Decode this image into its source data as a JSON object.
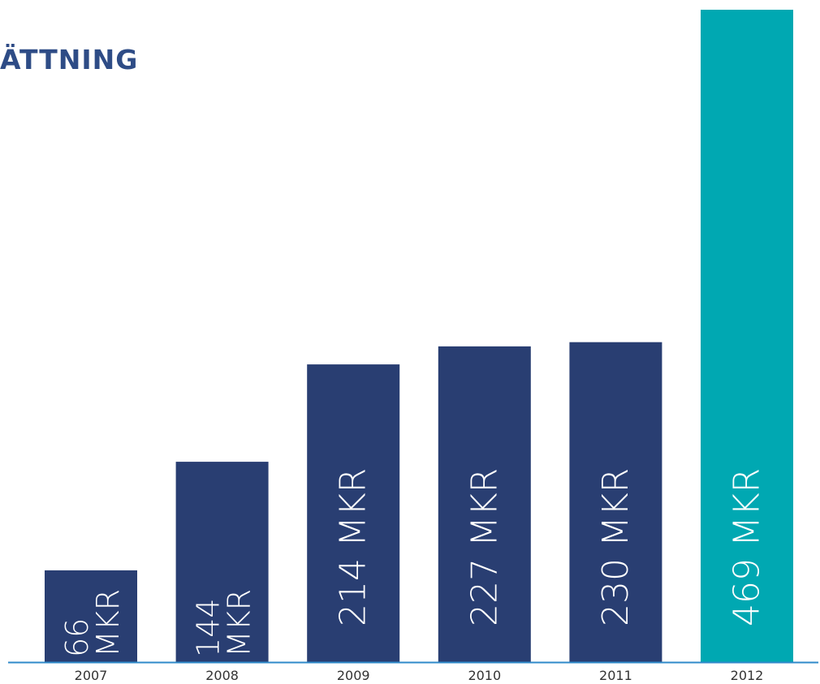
{
  "chart_data": {
    "type": "bar",
    "title": "ÄTTNING",
    "categories": [
      "2007",
      "2008",
      "2009",
      "2010",
      "2011",
      "2012"
    ],
    "values": [
      66,
      144,
      214,
      227,
      230,
      469
    ],
    "value_labels": [
      "66 MKR",
      "144 MKR",
      "214 MKR",
      "227 MKR",
      "230 MKR",
      "469 MKR"
    ],
    "unit": "MKR",
    "bar_colors": [
      "#293e72",
      "#293e72",
      "#293e72",
      "#293e72",
      "#293e72",
      "#00a8b2"
    ],
    "axis_color": "#2f8ac9",
    "label_color": "#ffffff",
    "tick_color": "#333333",
    "ylim": [
      0,
      469
    ],
    "grid": false,
    "legend": "none"
  }
}
